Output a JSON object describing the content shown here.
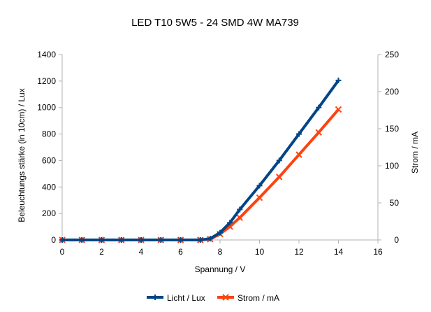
{
  "chart_data": {
    "type": "line",
    "title": "LED T10 5W5 - 24 SMD 4W MA739",
    "xlabel": "Spannung / V",
    "ylabel_left": "Beleuchtungs stärke (in 10cm) / Lux",
    "ylabel_right": "Strom / mA",
    "xlim": [
      0,
      16
    ],
    "ylim_left": [
      0,
      1400
    ],
    "ylim_right": [
      0,
      250
    ],
    "x_ticks": [
      "0",
      "2",
      "4",
      "6",
      "8",
      "10",
      "12",
      "14",
      "16"
    ],
    "y_left_ticks": [
      "0",
      "200",
      "400",
      "600",
      "800",
      "1000",
      "1200",
      "1400"
    ],
    "y_right_ticks": [
      "0",
      "50",
      "100",
      "150",
      "200",
      "250"
    ],
    "grid": false,
    "legend_position": "bottom",
    "series": [
      {
        "name": "Licht / Lux",
        "axis": "left",
        "color": "#004586",
        "marker": "plus",
        "x": [
          0,
          1,
          2,
          3,
          4,
          5,
          6,
          7,
          7.5,
          8,
          8.5,
          9,
          10,
          11,
          12,
          13,
          14
        ],
        "y": [
          0,
          0,
          0,
          0,
          0,
          0,
          0,
          0,
          10,
          55,
          130,
          230,
          410,
          600,
          800,
          1000,
          1205
        ]
      },
      {
        "name": "Strom / mA",
        "axis": "right",
        "color": "#ff420e",
        "marker": "x",
        "x": [
          0,
          1,
          2,
          3,
          4,
          5,
          6,
          7,
          7.5,
          8,
          8.5,
          9,
          10,
          11,
          12,
          13,
          14
        ],
        "y": [
          0,
          0,
          0,
          0,
          0,
          0,
          0,
          0,
          1,
          8,
          18,
          30,
          57,
          85,
          115,
          145,
          176
        ]
      }
    ]
  }
}
